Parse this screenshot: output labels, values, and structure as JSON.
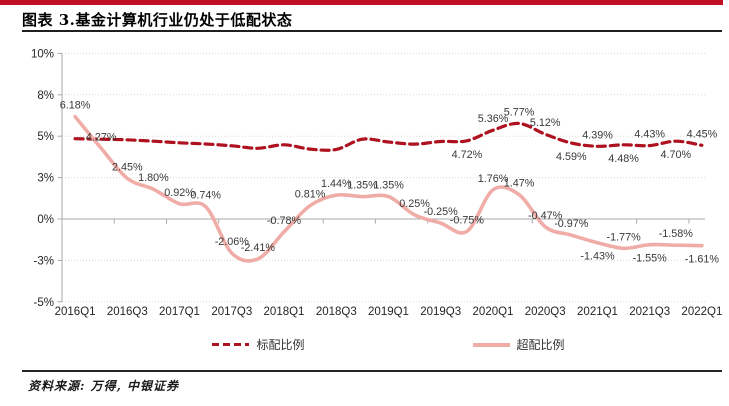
{
  "header": {
    "title": "图表 3.基金计算机行业仍处于低配状态"
  },
  "footer": {
    "source": "资料来源: 万得, 中银证券"
  },
  "colors": {
    "accent_bar": "#C00E26",
    "benchmark_line": "#AE111F",
    "overweight_line": "#F0ACA6",
    "gridline": "#D9D9D9",
    "axis": "#A9A9A9",
    "data_label": "#383838",
    "tick_label": "#262626"
  },
  "chart_data": {
    "type": "line",
    "title": "图表 3.基金计算机行业仍处于低配状态",
    "x": [
      "2016Q1",
      "2016Q2",
      "2016Q3",
      "2016Q4",
      "2017Q1",
      "2017Q2",
      "2017Q3",
      "2017Q4",
      "2018Q1",
      "2018Q2",
      "2018Q3",
      "2018Q4",
      "2019Q1",
      "2019Q2",
      "2019Q3",
      "2019Q4",
      "2020Q1",
      "2020Q2",
      "2020Q3",
      "2020Q4",
      "2021Q1",
      "2021Q2",
      "2021Q3",
      "2021Q4",
      "2022Q1"
    ],
    "x_tick_labels": [
      "2016Q1",
      "2016Q3",
      "2017Q1",
      "2017Q3",
      "2018Q1",
      "2018Q3",
      "2019Q1",
      "2019Q3",
      "2020Q1",
      "2020Q3",
      "2021Q1",
      "2021Q3",
      "2022Q1"
    ],
    "y_ticks": [
      {
        "label": "10%",
        "value": 10
      },
      {
        "label": "8%",
        "value": 7.5
      },
      {
        "label": "5%",
        "value": 5
      },
      {
        "label": "3%",
        "value": 2.5
      },
      {
        "label": "0%",
        "value": 0
      },
      {
        "label": "-3%",
        "value": -2.5
      },
      {
        "label": "-5%",
        "value": -5
      }
    ],
    "ylim": [
      -5,
      10
    ],
    "grid": "horizontal-dotted",
    "legend_position": "bottom",
    "series": [
      {
        "name": "标配比例",
        "style": "dashed",
        "color": "#AE111F",
        "values": [
          4.85,
          4.82,
          4.78,
          4.7,
          4.6,
          4.53,
          4.42,
          4.27,
          4.48,
          4.22,
          4.2,
          4.82,
          4.65,
          4.52,
          4.68,
          4.72,
          5.36,
          5.77,
          5.12,
          4.59,
          4.39,
          4.48,
          4.43,
          4.7,
          4.45
        ],
        "labels": [
          null,
          null,
          null,
          null,
          null,
          null,
          null,
          null,
          null,
          null,
          null,
          null,
          null,
          null,
          null,
          "4.72%",
          "5.36%",
          "5.77%",
          "5.12%",
          "4.59%",
          "4.39%",
          "4.48%",
          "4.43%",
          "4.70%",
          "4.45%"
        ],
        "label_sides": [
          null,
          null,
          null,
          null,
          null,
          null,
          null,
          null,
          null,
          null,
          null,
          null,
          null,
          null,
          null,
          "below",
          "above",
          "above",
          "above",
          "below",
          "above",
          "below",
          "above",
          "below",
          "above"
        ]
      },
      {
        "name": "超配比例",
        "style": "solid",
        "color": "#F0ACA6",
        "values": [
          6.18,
          4.27,
          2.45,
          1.8,
          0.92,
          0.74,
          -2.06,
          -2.41,
          -0.78,
          0.81,
          1.44,
          1.35,
          1.35,
          0.25,
          -0.25,
          -0.75,
          1.76,
          1.47,
          -0.47,
          -0.97,
          -1.43,
          -1.77,
          -1.55,
          -1.58,
          -1.61
        ],
        "labels": [
          "6.18%",
          "4.27%",
          "2.45%",
          "1.80%",
          "0.92%",
          "0.74%",
          "-2.06%",
          "-2.41%",
          "-0.78%",
          "0.81%",
          "1.44%",
          "1.35%",
          "1.35%",
          "0.25%",
          "-0.25%",
          "-0.75%",
          "1.76%",
          "1.47%",
          "-0.47%",
          "-0.97%",
          "-1.43%",
          "-1.77%",
          "-1.55%",
          "-1.58%",
          "-1.61%"
        ],
        "label_sides": [
          "above",
          "above",
          "above",
          "above",
          "above",
          "above",
          "above",
          "above",
          "above",
          "above",
          "above",
          "above",
          "above",
          "above",
          "above",
          "above",
          "above",
          "above",
          "above",
          "above",
          "below",
          "above",
          "below",
          "above",
          "below"
        ]
      }
    ]
  }
}
